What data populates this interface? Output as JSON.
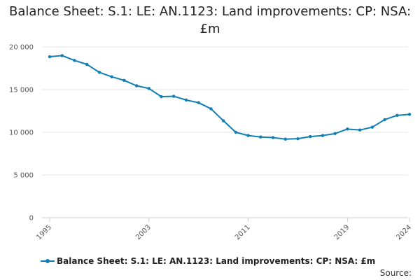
{
  "chart_data": {
    "type": "line",
    "title": "Balance Sheet: S.1: LE: AN.1123: Land improvements: CP: NSA: £m",
    "x": [
      1995,
      1996,
      1997,
      1998,
      1999,
      2000,
      2001,
      2002,
      2003,
      2004,
      2005,
      2006,
      2007,
      2008,
      2009,
      2010,
      2011,
      2012,
      2013,
      2014,
      2015,
      2016,
      2017,
      2018,
      2019,
      2020,
      2021,
      2022,
      2023,
      2024
    ],
    "series": [
      {
        "name": "Balance Sheet: S.1: LE: AN.1123: Land improvements: CP: NSA: £m",
        "color": "#0f7eb4",
        "values": [
          18850,
          18980,
          18420,
          17950,
          17020,
          16500,
          16080,
          15450,
          15130,
          14170,
          14220,
          13780,
          13470,
          12750,
          11350,
          10000,
          9620,
          9450,
          9380,
          9200,
          9250,
          9500,
          9620,
          9850,
          10380,
          10270,
          10600,
          11480,
          11980,
          12100
        ]
      }
    ],
    "xticks": [
      1995,
      2003,
      2011,
      2019,
      2024
    ],
    "yticks": [
      0,
      5000,
      10000,
      15000,
      20000
    ],
    "ytick_labels": [
      "0",
      "5 000",
      "10 000",
      "15 000",
      "20 000"
    ],
    "xlabel": "",
    "ylabel": "",
    "ylim": [
      0,
      20000
    ],
    "grid": true,
    "legend_position": "bottom-left"
  },
  "footer": {
    "source_label": "Source:"
  }
}
